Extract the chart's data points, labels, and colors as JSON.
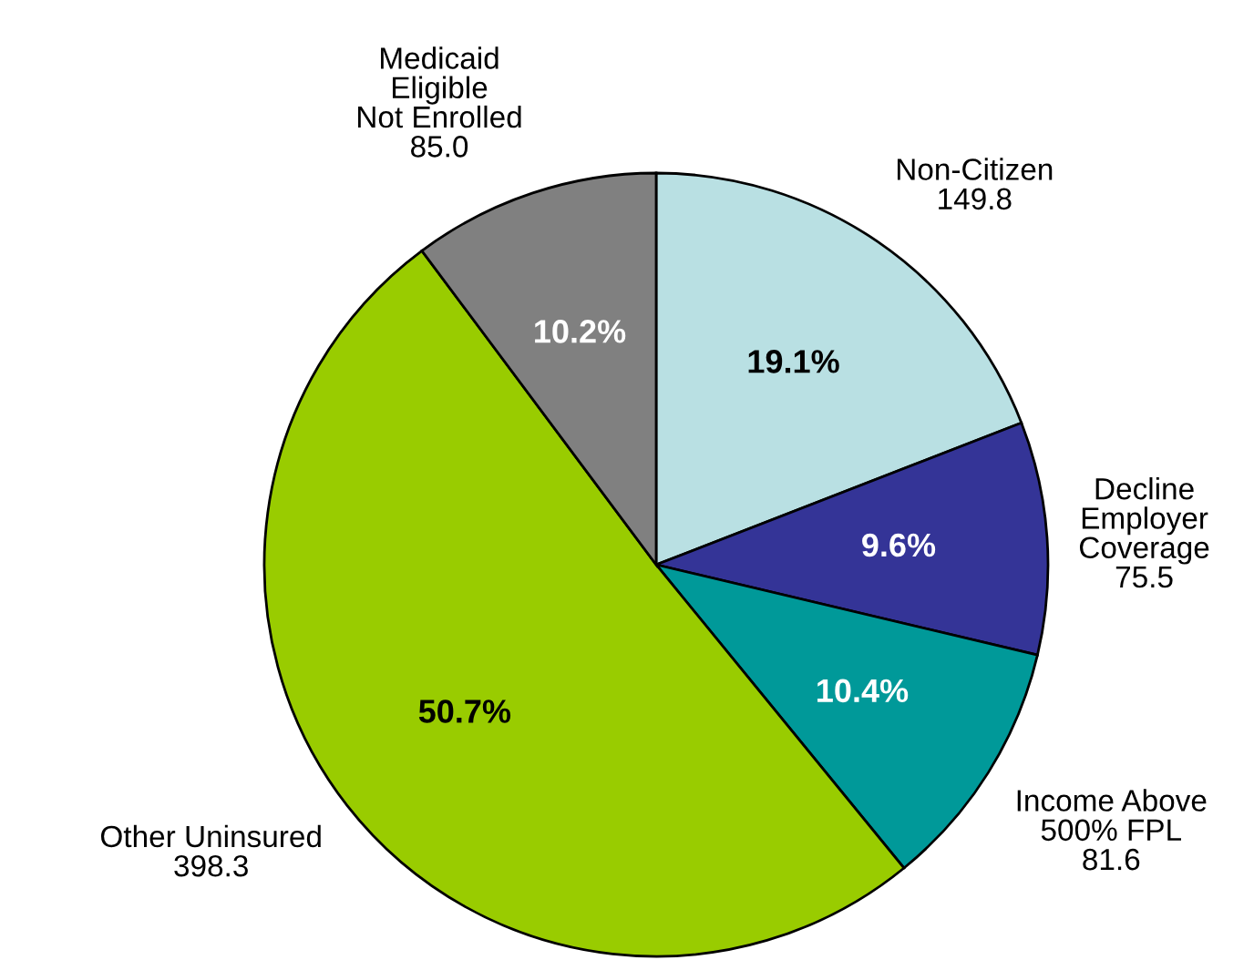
{
  "chart_data": {
    "type": "pie",
    "categories": [
      "Non-Citizen\n149.8",
      "Decline\nEmployer\nCoverage\n75.5",
      "Income Above\n500% FPL\n81.6",
      "Other Uninsured\n398.3",
      "Medicaid\nEligible\nNot Enrolled\n85.0"
    ],
    "values": [
      19.1,
      9.6,
      10.4,
      50.7,
      10.2
    ],
    "colors": [
      "#b9e0e3",
      "#343497",
      "#009999",
      "#99cc00",
      "#808080"
    ],
    "value_labels": [
      "19.1%",
      "9.6%",
      "10.4%",
      "50.7%",
      "10.2%"
    ]
  }
}
